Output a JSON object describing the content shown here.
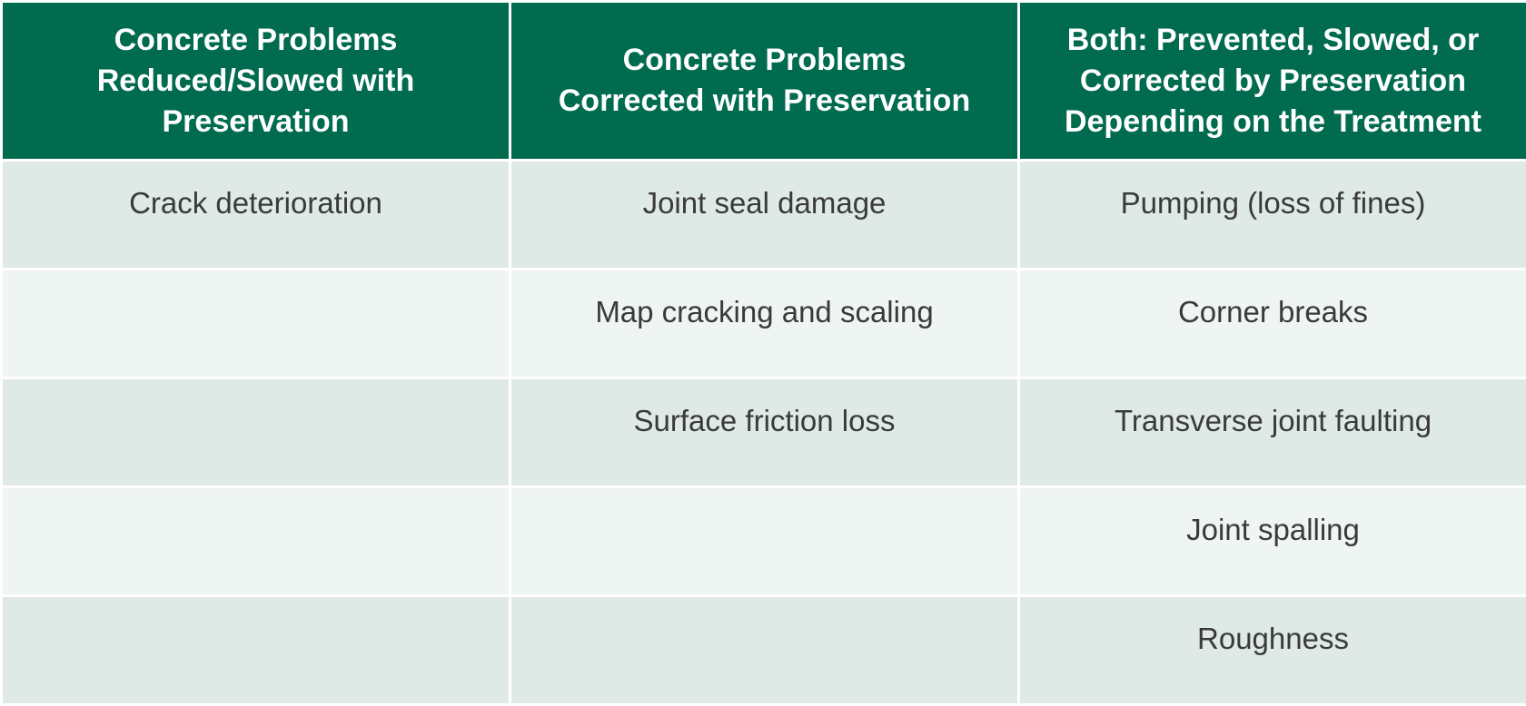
{
  "table": {
    "headers": [
      "Concrete Problems\nReduced/Slowed with\nPreservation",
      "Concrete Problems\nCorrected with Preservation",
      "Both: Prevented, Slowed, or\nCorrected by Preservation\nDepending on the Treatment"
    ],
    "rows": [
      [
        "Crack deterioration",
        "Joint seal damage",
        "Pumping (loss of fines)"
      ],
      [
        "",
        "Map cracking and scaling",
        "Corner breaks"
      ],
      [
        "",
        "Surface friction loss",
        "Transverse joint faulting"
      ],
      [
        "",
        "",
        "Joint spalling"
      ],
      [
        "",
        "",
        "Roughness"
      ]
    ],
    "colors": {
      "header_bg": "#006b4f",
      "header_text": "#ffffff",
      "row_odd_bg": "#dfeae7",
      "row_even_bg": "#eff5f3",
      "body_text": "#3a3a3a"
    }
  }
}
